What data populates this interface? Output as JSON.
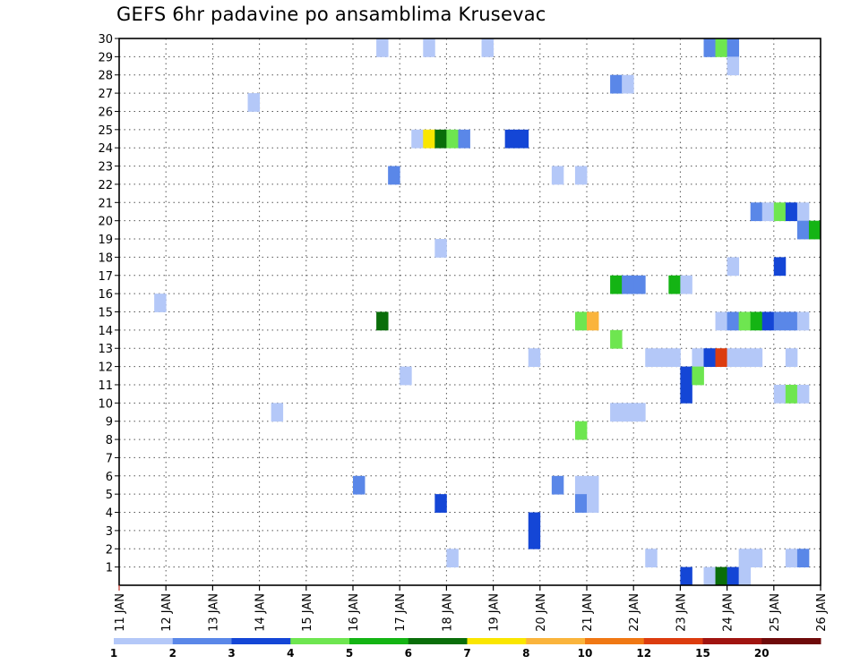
{
  "chart_data": {
    "type": "heatmap",
    "title": "GEFS 6hr padavine po ansamblima Krusevac",
    "xlabel": "",
    "ylabel": "",
    "x_ticks": [
      "11 JAN",
      "12 JAN",
      "13 JAN",
      "14 JAN",
      "15 JAN",
      "16 JAN",
      "17 JAN",
      "18 JAN",
      "19 JAN",
      "20 JAN",
      "21 JAN",
      "22 JAN",
      "23 JAN",
      "24 JAN",
      "25 JAN",
      "26 JAN"
    ],
    "x_range_days": [
      0,
      15
    ],
    "y_ticks": [
      1,
      2,
      3,
      4,
      5,
      6,
      7,
      8,
      9,
      10,
      11,
      12,
      13,
      14,
      15,
      16,
      17,
      18,
      19,
      20,
      21,
      22,
      23,
      24,
      25,
      26,
      27,
      28,
      29,
      30
    ],
    "y_range": [
      0,
      30
    ],
    "grid": true,
    "step_hours": 6,
    "colorbar": {
      "labels": [
        "1",
        "2",
        "3",
        "4",
        "5",
        "6",
        "7",
        "8",
        "10",
        "12",
        "15",
        "20"
      ],
      "colors": [
        "#b4c8f8",
        "#5a87e8",
        "#1446d6",
        "#6ee650",
        "#14b414",
        "#0a6e0a",
        "#fae600",
        "#fab43c",
        "#f07814",
        "#dc3c0f",
        "#a01410",
        "#6e0a0a"
      ]
    },
    "cells": [
      [
        30,
        5.5,
        1
      ],
      [
        30,
        6.5,
        1
      ],
      [
        30,
        7.75,
        1
      ],
      [
        30,
        12.5,
        2
      ],
      [
        30,
        12.75,
        4
      ],
      [
        30,
        13.0,
        2
      ],
      [
        29,
        13.0,
        1
      ],
      [
        28,
        10.5,
        2
      ],
      [
        28,
        10.75,
        1
      ],
      [
        27,
        2.75,
        1
      ],
      [
        25,
        6.25,
        1
      ],
      [
        25,
        6.5,
        7
      ],
      [
        25,
        6.75,
        6
      ],
      [
        25,
        7.0,
        4
      ],
      [
        25,
        7.25,
        2
      ],
      [
        25,
        8.25,
        3
      ],
      [
        25,
        8.5,
        3
      ],
      [
        23,
        5.75,
        2
      ],
      [
        23,
        9.25,
        1
      ],
      [
        23,
        9.75,
        1
      ],
      [
        21,
        13.5,
        2
      ],
      [
        21,
        13.75,
        1
      ],
      [
        21,
        14.0,
        4
      ],
      [
        21,
        14.25,
        3
      ],
      [
        21,
        14.5,
        1
      ],
      [
        20,
        14.5,
        2
      ],
      [
        20,
        14.75,
        5
      ],
      [
        19,
        6.75,
        1
      ],
      [
        18,
        13.0,
        1
      ],
      [
        18,
        14.0,
        3
      ],
      [
        17,
        10.5,
        5
      ],
      [
        17,
        10.75,
        2
      ],
      [
        17,
        11.0,
        2
      ],
      [
        17,
        11.75,
        5
      ],
      [
        17,
        12.0,
        1
      ],
      [
        16,
        0.75,
        1
      ],
      [
        15,
        5.5,
        6
      ],
      [
        15,
        9.75,
        4
      ],
      [
        15,
        10.0,
        8
      ],
      [
        15,
        12.75,
        1
      ],
      [
        15,
        13.0,
        2
      ],
      [
        15,
        13.25,
        4
      ],
      [
        15,
        13.5,
        5
      ],
      [
        15,
        13.75,
        3
      ],
      [
        15,
        14.0,
        2
      ],
      [
        15,
        14.25,
        2
      ],
      [
        15,
        14.5,
        1
      ],
      [
        14,
        10.5,
        4
      ],
      [
        13,
        8.75,
        1
      ],
      [
        13,
        11.25,
        1
      ],
      [
        13,
        11.5,
        1
      ],
      [
        13,
        11.75,
        1
      ],
      [
        13,
        12.25,
        1
      ],
      [
        13,
        12.5,
        3
      ],
      [
        13,
        12.75,
        10
      ],
      [
        13,
        13.0,
        1
      ],
      [
        13,
        13.25,
        1
      ],
      [
        13,
        13.5,
        1
      ],
      [
        13,
        14.25,
        1
      ],
      [
        12,
        6.0,
        1
      ],
      [
        12,
        12.0,
        3
      ],
      [
        12,
        12.25,
        4
      ],
      [
        11,
        12.0,
        3
      ],
      [
        11,
        14.0,
        1
      ],
      [
        11,
        14.25,
        4
      ],
      [
        11,
        14.5,
        1
      ],
      [
        10,
        3.25,
        1
      ],
      [
        10,
        10.5,
        1
      ],
      [
        10,
        10.75,
        1
      ],
      [
        10,
        11.0,
        1
      ],
      [
        9,
        9.75,
        4
      ],
      [
        6,
        5.0,
        2
      ],
      [
        6,
        9.25,
        2
      ],
      [
        6,
        9.75,
        1
      ],
      [
        6,
        10.0,
        1
      ],
      [
        5,
        6.75,
        3
      ],
      [
        5,
        9.75,
        2
      ],
      [
        5,
        10.0,
        1
      ],
      [
        4,
        8.75,
        3
      ],
      [
        3,
        8.75,
        3
      ],
      [
        2,
        7.0,
        1
      ],
      [
        2,
        11.25,
        1
      ],
      [
        2,
        13.25,
        1
      ],
      [
        2,
        13.5,
        1
      ],
      [
        2,
        14.25,
        1
      ],
      [
        2,
        14.5,
        2
      ],
      [
        1,
        12.0,
        3
      ],
      [
        1,
        12.5,
        1
      ],
      [
        1,
        12.75,
        6
      ],
      [
        1,
        13.0,
        3
      ],
      [
        1,
        13.25,
        1
      ]
    ]
  }
}
